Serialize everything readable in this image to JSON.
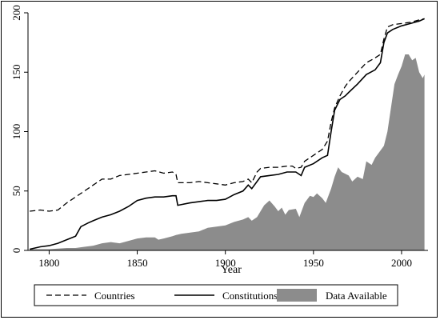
{
  "chart_data": {
    "type": "line",
    "title": "",
    "xlabel": "Year",
    "ylabel": "",
    "xlim": [
      1788,
      2015
    ],
    "ylim": [
      0,
      200
    ],
    "x_ticks": [
      "1800",
      "1850",
      "1900",
      "1950",
      "2000"
    ],
    "y_ticks": [
      "0",
      "50",
      "100",
      "150",
      "200"
    ],
    "grid": false,
    "legend_position": "bottom",
    "colors": {
      "lines": "#000000",
      "area": "#8c8c8c",
      "background": "#ffffff"
    },
    "series": [
      {
        "name": "Countries",
        "style": "dashed",
        "points": [
          [
            1789,
            33
          ],
          [
            1795,
            34
          ],
          [
            1800,
            33
          ],
          [
            1805,
            34
          ],
          [
            1810,
            40
          ],
          [
            1815,
            45
          ],
          [
            1820,
            50
          ],
          [
            1825,
            55
          ],
          [
            1830,
            60
          ],
          [
            1835,
            60
          ],
          [
            1840,
            63
          ],
          [
            1845,
            64
          ],
          [
            1850,
            65
          ],
          [
            1855,
            66
          ],
          [
            1860,
            67
          ],
          [
            1865,
            65
          ],
          [
            1870,
            66
          ],
          [
            1872,
            64
          ],
          [
            1873,
            57
          ],
          [
            1880,
            57
          ],
          [
            1885,
            58
          ],
          [
            1890,
            57
          ],
          [
            1895,
            56
          ],
          [
            1900,
            55
          ],
          [
            1905,
            57
          ],
          [
            1910,
            58
          ],
          [
            1913,
            60
          ],
          [
            1915,
            57
          ],
          [
            1918,
            66
          ],
          [
            1920,
            69
          ],
          [
            1925,
            70
          ],
          [
            1930,
            70
          ],
          [
            1935,
            71
          ],
          [
            1938,
            71
          ],
          [
            1940,
            69
          ],
          [
            1943,
            70
          ],
          [
            1945,
            75
          ],
          [
            1950,
            80
          ],
          [
            1955,
            85
          ],
          [
            1958,
            92
          ],
          [
            1960,
            108
          ],
          [
            1962,
            120
          ],
          [
            1965,
            130
          ],
          [
            1968,
            138
          ],
          [
            1970,
            142
          ],
          [
            1975,
            150
          ],
          [
            1980,
            158
          ],
          [
            1985,
            162
          ],
          [
            1988,
            165
          ],
          [
            1990,
            178
          ],
          [
            1992,
            188
          ],
          [
            1995,
            190
          ],
          [
            2000,
            191
          ],
          [
            2005,
            192
          ],
          [
            2010,
            194
          ],
          [
            2013,
            195
          ]
        ]
      },
      {
        "name": "Constitutions",
        "style": "solid",
        "points": [
          [
            1789,
            1
          ],
          [
            1795,
            3
          ],
          [
            1800,
            4
          ],
          [
            1805,
            6
          ],
          [
            1810,
            9
          ],
          [
            1815,
            12
          ],
          [
            1818,
            20
          ],
          [
            1822,
            23
          ],
          [
            1825,
            25
          ],
          [
            1830,
            28
          ],
          [
            1835,
            30
          ],
          [
            1840,
            33
          ],
          [
            1845,
            37
          ],
          [
            1850,
            42
          ],
          [
            1855,
            44
          ],
          [
            1860,
            45
          ],
          [
            1865,
            45
          ],
          [
            1870,
            46
          ],
          [
            1872,
            46
          ],
          [
            1873,
            38
          ],
          [
            1880,
            40
          ],
          [
            1885,
            41
          ],
          [
            1890,
            42
          ],
          [
            1895,
            42
          ],
          [
            1900,
            43
          ],
          [
            1905,
            47
          ],
          [
            1910,
            50
          ],
          [
            1913,
            55
          ],
          [
            1915,
            52
          ],
          [
            1918,
            58
          ],
          [
            1920,
            62
          ],
          [
            1925,
            63
          ],
          [
            1930,
            64
          ],
          [
            1935,
            66
          ],
          [
            1940,
            66
          ],
          [
            1943,
            63
          ],
          [
            1945,
            70
          ],
          [
            1950,
            73
          ],
          [
            1955,
            78
          ],
          [
            1958,
            80
          ],
          [
            1960,
            100
          ],
          [
            1962,
            118
          ],
          [
            1965,
            127
          ],
          [
            1968,
            130
          ],
          [
            1970,
            133
          ],
          [
            1975,
            140
          ],
          [
            1980,
            148
          ],
          [
            1985,
            152
          ],
          [
            1988,
            158
          ],
          [
            1990,
            175
          ],
          [
            1992,
            183
          ],
          [
            1995,
            186
          ],
          [
            2000,
            189
          ],
          [
            2005,
            191
          ],
          [
            2010,
            193
          ],
          [
            2013,
            195
          ]
        ]
      },
      {
        "name": "Data Available",
        "style": "area",
        "points": [
          [
            1789,
            1
          ],
          [
            1800,
            1
          ],
          [
            1810,
            2
          ],
          [
            1815,
            2
          ],
          [
            1820,
            3
          ],
          [
            1825,
            4
          ],
          [
            1830,
            6
          ],
          [
            1835,
            7
          ],
          [
            1840,
            6
          ],
          [
            1845,
            8
          ],
          [
            1850,
            10
          ],
          [
            1855,
            11
          ],
          [
            1860,
            11
          ],
          [
            1862,
            9
          ],
          [
            1865,
            10
          ],
          [
            1870,
            12
          ],
          [
            1872,
            13
          ],
          [
            1875,
            14
          ],
          [
            1880,
            15
          ],
          [
            1885,
            16
          ],
          [
            1890,
            19
          ],
          [
            1895,
            20
          ],
          [
            1900,
            21
          ],
          [
            1905,
            24
          ],
          [
            1910,
            26
          ],
          [
            1913,
            28
          ],
          [
            1915,
            25
          ],
          [
            1918,
            28
          ],
          [
            1920,
            33
          ],
          [
            1922,
            38
          ],
          [
            1925,
            42
          ],
          [
            1928,
            37
          ],
          [
            1930,
            33
          ],
          [
            1932,
            36
          ],
          [
            1934,
            30
          ],
          [
            1936,
            34
          ],
          [
            1940,
            35
          ],
          [
            1942,
            28
          ],
          [
            1945,
            40
          ],
          [
            1948,
            46
          ],
          [
            1950,
            45
          ],
          [
            1952,
            48
          ],
          [
            1955,
            44
          ],
          [
            1957,
            40
          ],
          [
            1960,
            52
          ],
          [
            1962,
            62
          ],
          [
            1964,
            70
          ],
          [
            1966,
            66
          ],
          [
            1970,
            63
          ],
          [
            1972,
            58
          ],
          [
            1975,
            62
          ],
          [
            1978,
            60
          ],
          [
            1980,
            75
          ],
          [
            1983,
            72
          ],
          [
            1985,
            78
          ],
          [
            1987,
            82
          ],
          [
            1990,
            88
          ],
          [
            1992,
            100
          ],
          [
            1994,
            120
          ],
          [
            1996,
            140
          ],
          [
            1998,
            148
          ],
          [
            2000,
            155
          ],
          [
            2002,
            165
          ],
          [
            2004,
            165
          ],
          [
            2006,
            160
          ],
          [
            2008,
            162
          ],
          [
            2010,
            150
          ],
          [
            2012,
            145
          ],
          [
            2013,
            148
          ]
        ]
      }
    ],
    "legend": [
      {
        "label": "Countries",
        "style": "dashed"
      },
      {
        "label": "Constitutions",
        "style": "solid"
      },
      {
        "label": "Data Available",
        "style": "area"
      }
    ]
  }
}
